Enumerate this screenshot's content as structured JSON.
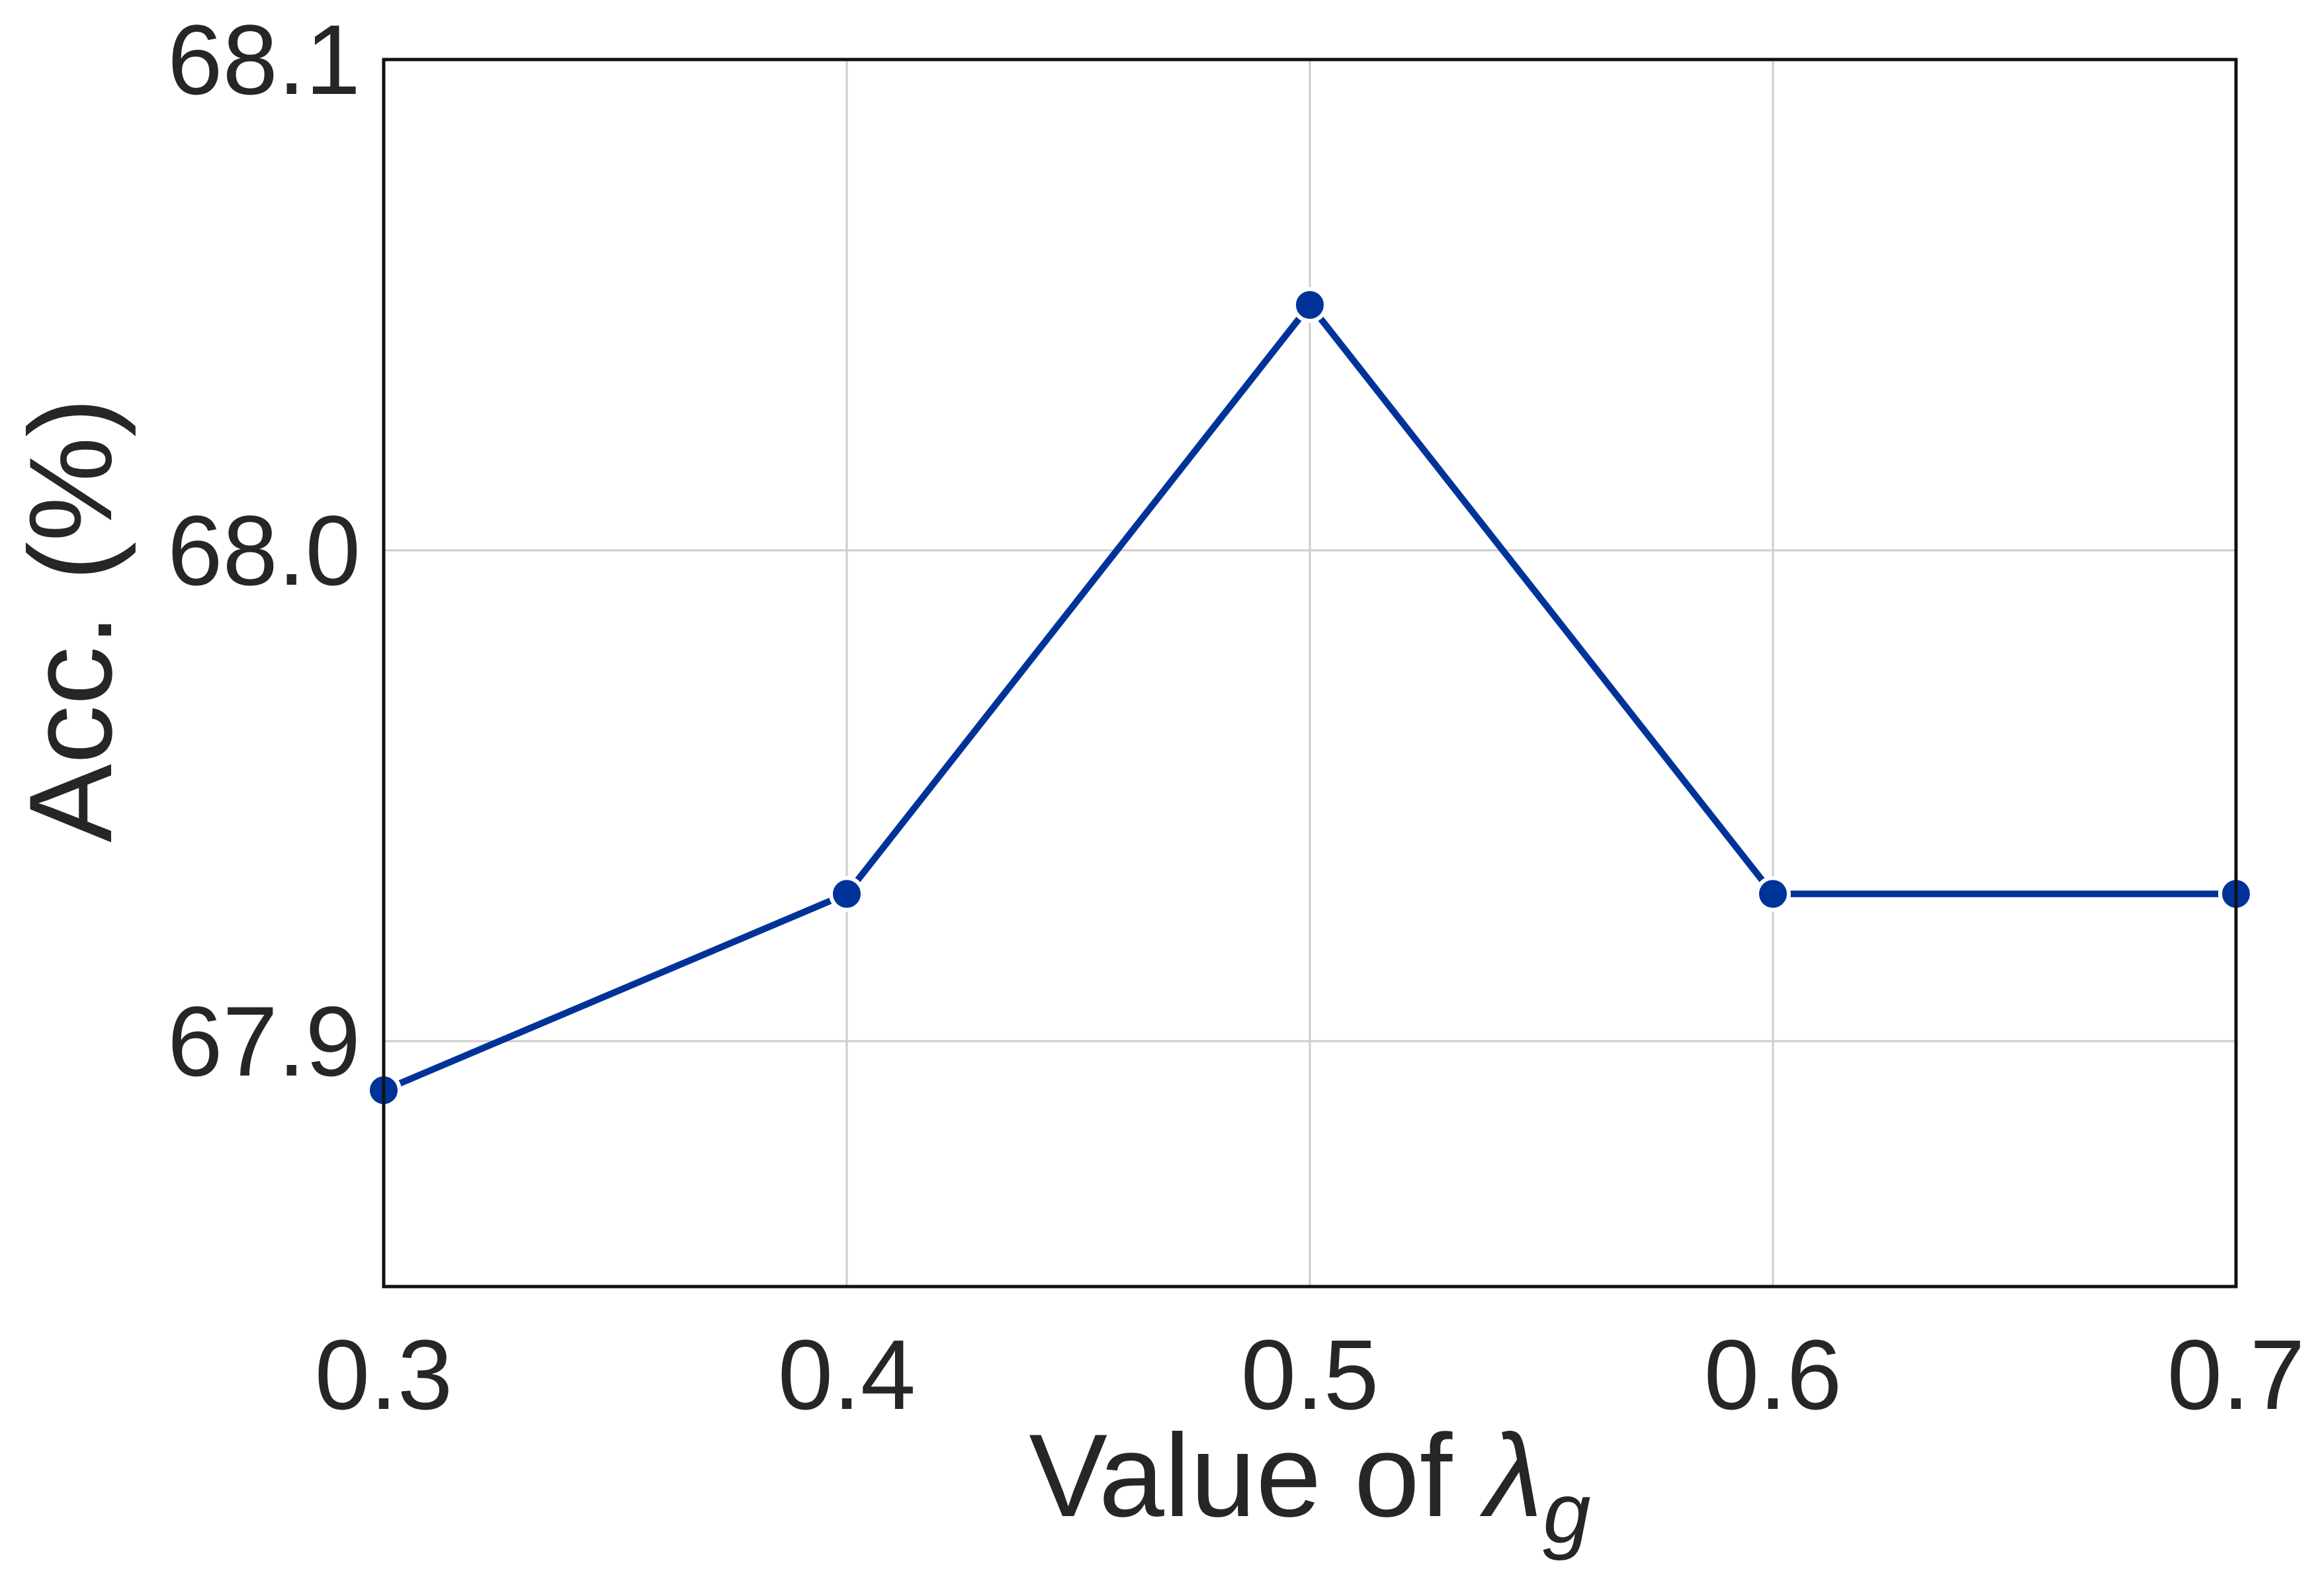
{
  "chart_data": {
    "type": "line",
    "title": "",
    "xlabel": "Value of ",
    "xlabel_symbol": "λ",
    "xlabel_subscript": "g",
    "ylabel": "Acc. (%)",
    "x": [
      0.3,
      0.4,
      0.5,
      0.6,
      0.7
    ],
    "series": [
      {
        "values": [
          67.89,
          67.93,
          68.05,
          67.93,
          67.93
        ]
      }
    ],
    "xlim": [
      0.3,
      0.7
    ],
    "ylim": [
      67.85,
      68.1
    ],
    "xticks": [
      "0.3",
      "0.4",
      "0.5",
      "0.6",
      "0.7"
    ],
    "yticks": [
      "67.9",
      "68.0",
      "68.1"
    ],
    "ytick_values": [
      67.9,
      68.0,
      68.1
    ],
    "grid": true,
    "legend": "none",
    "colors": {
      "line": "#00339a",
      "marker_edge": "#ffffff",
      "grid": "#cccccc",
      "frame": "#111111",
      "text": "#262626"
    }
  }
}
